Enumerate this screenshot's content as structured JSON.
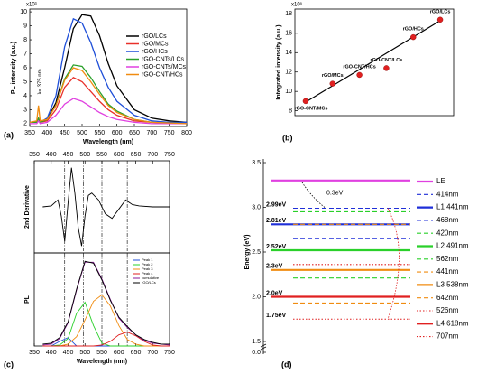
{
  "chart_data": [
    {
      "type": "line",
      "panel_label": "(a)",
      "xlabel": "Wavelength (nm)",
      "ylabel": "PL intensity (a.u.)",
      "multiplier": "x10³",
      "annotation": "λ= 375 nm",
      "xlim": [
        350,
        800
      ],
      "xticks": [
        350,
        400,
        450,
        500,
        550,
        600,
        650,
        700,
        750,
        800
      ],
      "ylim": [
        1.8,
        10.2
      ],
      "yticks": [
        2,
        3,
        4,
        5,
        6,
        7,
        8,
        9,
        10
      ],
      "x": [
        350,
        370,
        375,
        380,
        400,
        425,
        450,
        475,
        500,
        525,
        550,
        575,
        600,
        650,
        700,
        750,
        800
      ],
      "series": [
        {
          "name": "rGO/LCs",
          "color": "#000000",
          "values": [
            2.1,
            2.1,
            2.2,
            2.1,
            2.3,
            3.5,
            6.0,
            8.8,
            9.8,
            9.7,
            8.3,
            6.3,
            4.7,
            3.0,
            2.4,
            2.2,
            2.1
          ]
        },
        {
          "name": "rGO/MCs",
          "color": "#e8302a",
          "values": [
            2.1,
            2.1,
            2.3,
            2.1,
            2.2,
            3.0,
            4.6,
            5.3,
            5.0,
            4.3,
            3.6,
            3.0,
            2.6,
            2.2,
            2.1,
            2.0,
            2.0
          ]
        },
        {
          "name": "rGO/HCs",
          "color": "#1f4fd8",
          "values": [
            2.1,
            2.1,
            2.3,
            2.1,
            2.4,
            4.0,
            7.5,
            9.5,
            9.2,
            7.8,
            6.0,
            4.6,
            3.6,
            2.6,
            2.2,
            2.1,
            2.1
          ]
        },
        {
          "name": "rGO-CNTs/LCs",
          "color": "#2aa02a",
          "values": [
            2.1,
            2.1,
            2.4,
            2.1,
            2.3,
            3.3,
            5.2,
            6.2,
            6.1,
            5.3,
            4.3,
            3.4,
            2.9,
            2.3,
            2.1,
            2.05,
            2.0
          ]
        },
        {
          "name": "rGO-CNTs/MCs",
          "color": "#e040e0",
          "values": [
            2.0,
            2.0,
            2.2,
            2.0,
            2.1,
            2.6,
            3.4,
            3.8,
            3.6,
            3.2,
            2.8,
            2.5,
            2.3,
            2.1,
            2.0,
            2.0,
            2.0
          ]
        },
        {
          "name": "rGO-CNT/HCs",
          "color": "#f08c10",
          "values": [
            2.1,
            2.2,
            3.3,
            2.2,
            2.3,
            3.3,
            5.1,
            6.0,
            5.8,
            5.0,
            4.1,
            3.3,
            2.8,
            2.3,
            2.1,
            2.05,
            2.0
          ]
        }
      ]
    },
    {
      "type": "scatter",
      "panel_label": "(b)",
      "ylabel": "Integrated intensity (a.u.)",
      "multiplier": "x10⁵",
      "xlim": [
        0.6,
        6.5
      ],
      "ylim": [
        7.5,
        18.5
      ],
      "yticks": [
        8,
        10,
        12,
        14,
        16,
        18
      ],
      "x": [
        1,
        2,
        3,
        4,
        5,
        6
      ],
      "values": [
        9.0,
        10.8,
        11.7,
        12.4,
        15.6,
        17.4
      ],
      "color": "#e02020",
      "point_labels": [
        "rGO-CNT/MCs",
        "rGO/MCs",
        "rGO-CNT/HCs",
        "rGO-CNT/LCs",
        "rGO/HCs",
        "rGO/LCs"
      ],
      "label_colors": [
        "#e040e0",
        "#e02020",
        "#f0a020",
        "#1a9a1a",
        "#1f4fd8",
        "#000000"
      ],
      "fit": {
        "x": [
          1,
          6
        ],
        "values": [
          8.9,
          17.3
        ],
        "color": "#000000"
      }
    },
    {
      "type": "line",
      "ylabel": "2nd Derivative",
      "xaxis_position": "top",
      "xlim": [
        350,
        750
      ],
      "xticks": [
        350,
        400,
        450,
        500,
        550,
        600,
        650,
        700,
        750
      ],
      "ylim": [
        -1,
        1
      ],
      "reference_lines": [
        440,
        495,
        550,
        625
      ],
      "x": [
        375,
        400,
        420,
        430,
        440,
        450,
        460,
        470,
        480,
        490,
        500,
        510,
        520,
        540,
        560,
        580,
        600,
        620,
        640,
        660,
        700,
        750
      ],
      "series": [
        {
          "color": "#000000",
          "values": [
            0,
            0.02,
            0.15,
            -0.2,
            -0.75,
            0.1,
            0.85,
            0.3,
            -0.45,
            -0.85,
            -0.2,
            0.25,
            0.3,
            0.15,
            -0.15,
            -0.25,
            -0.05,
            0.15,
            0.05,
            0.02,
            0,
            0
          ]
        }
      ]
    },
    {
      "type": "line",
      "panel_label": "(c)",
      "xlabel": "Wavelength (nm)",
      "ylabel": "PL",
      "xlim": [
        350,
        750
      ],
      "xticks": [
        350,
        400,
        450,
        500,
        550,
        600,
        650,
        700,
        750
      ],
      "ylim": [
        0,
        1
      ],
      "reference_lines": [
        440,
        495,
        550,
        625
      ],
      "x": [
        375,
        400,
        425,
        450,
        475,
        500,
        525,
        550,
        575,
        600,
        625,
        650,
        675,
        700,
        725,
        750
      ],
      "series": [
        {
          "name": "Peak 1",
          "color": "#1f4fd8",
          "values": [
            0,
            0,
            0.05,
            0.09,
            0,
            0,
            0,
            0,
            0,
            0,
            0,
            0,
            0,
            0,
            0,
            0
          ]
        },
        {
          "name": "Peak 2",
          "color": "#2ad02a",
          "values": [
            0,
            0,
            0.01,
            0.08,
            0.35,
            0.47,
            0.22,
            0.03,
            0,
            0,
            0,
            0,
            0,
            0,
            0,
            0
          ]
        },
        {
          "name": "Peak 3",
          "color": "#f08c10",
          "values": [
            0,
            0,
            0,
            0.02,
            0.1,
            0.28,
            0.48,
            0.55,
            0.43,
            0.22,
            0.07,
            0.02,
            0,
            0,
            0,
            0
          ]
        },
        {
          "name": "Peak 4",
          "color": "#e02020",
          "values": [
            0,
            0,
            0,
            0,
            0,
            0,
            0,
            0.01,
            0.05,
            0.12,
            0.15,
            0.11,
            0.05,
            0.01,
            0,
            0
          ]
        },
        {
          "name": "cumulative",
          "color": "#8a1a9a",
          "values": [
            0.01,
            0.02,
            0.08,
            0.25,
            0.6,
            0.9,
            0.9,
            0.72,
            0.5,
            0.3,
            0.2,
            0.12,
            0.06,
            0.03,
            0.02,
            0.01
          ]
        },
        {
          "name": "rGO/LCs",
          "color": "#000000",
          "values": [
            0.02,
            0.03,
            0.09,
            0.26,
            0.61,
            0.91,
            0.89,
            0.71,
            0.49,
            0.31,
            0.21,
            0.12,
            0.07,
            0.04,
            0.02,
            0.02
          ]
        }
      ]
    },
    {
      "type": "energy_levels",
      "panel_label": "(d)",
      "ylabel": "Energy (eV)",
      "ylim": [
        1.5,
        3.5
      ],
      "yticks": [
        1.5,
        {
          "value": 2,
          "label": "2.0"
        },
        2.5,
        {
          "value": 3,
          "label": "3.0"
        },
        3.5
      ],
      "axis_break_label": {
        "value": 0,
        "label": "0.0"
      },
      "levels": [
        {
          "name": "LE",
          "color": "#e040e0",
          "style": "solid",
          "value": 3.3
        },
        {
          "name": "414nm",
          "color": "#1f2fd8",
          "style": "dashed",
          "value": 2.99
        },
        {
          "name": "L1 441nm",
          "color": "#1f2fd8",
          "style": "solid",
          "value": 2.81
        },
        {
          "name": "468nm",
          "color": "#1f2fd8",
          "style": "dashed",
          "value": 2.65
        },
        {
          "name": "420nm",
          "color": "#2ad02a",
          "style": "dashed",
          "value": 2.95
        },
        {
          "name": "L2 491nm",
          "color": "#2ad02a",
          "style": "solid",
          "value": 2.52
        },
        {
          "name": "562nm",
          "color": "#2ad02a",
          "style": "dashed",
          "value": 2.21
        },
        {
          "name": "441nm",
          "color": "#f08c10",
          "style": "dashed",
          "value": 2.81
        },
        {
          "name": "L3 538nm",
          "color": "#f08c10",
          "style": "solid",
          "value": 2.3
        },
        {
          "name": "642nm",
          "color": "#f08c10",
          "style": "dashed",
          "value": 1.93
        },
        {
          "name": "526nm",
          "color": "#e02020",
          "style": "dotted",
          "value": 2.36
        },
        {
          "name": "L4 618nm",
          "color": "#e02020",
          "style": "solid",
          "value": 2.0
        },
        {
          "name": "707nm",
          "color": "#e02020",
          "style": "dotted",
          "value": 1.75
        }
      ],
      "annotations": [
        {
          "text": "0.3eV",
          "value": 3.12,
          "color": "#000000"
        },
        {
          "text": "2.99eV",
          "value": 2.99,
          "color": "#1f2fd8"
        },
        {
          "text": "2.81eV",
          "value": 2.81,
          "color": "#1f2fd8"
        },
        {
          "text": "2.52eV",
          "value": 2.52,
          "color": "#2ad02a"
        },
        {
          "text": "2.3eV",
          "value": 2.3,
          "color": "#f08c10"
        },
        {
          "text": "2.0eV",
          "value": 2.0,
          "color": "#e02020"
        },
        {
          "text": "1.75eV",
          "value": 1.75,
          "color": "#e02020"
        }
      ]
    }
  ]
}
